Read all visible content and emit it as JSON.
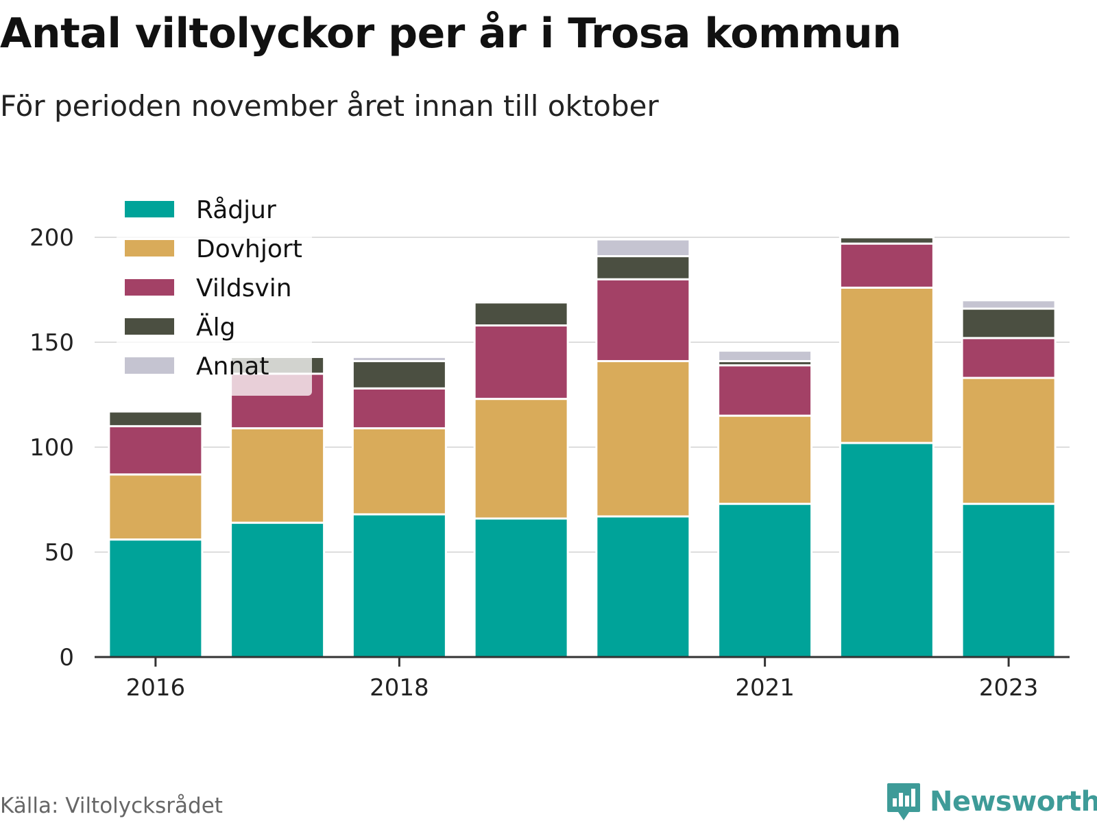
{
  "header": {
    "title": "Antal viltolyckor per år i Trosa kommun",
    "subtitle": "För perioden november året innan till oktober"
  },
  "footer": {
    "source": "Källa: Viltolycksrådet",
    "brand": "Newsworthy"
  },
  "chart_data": {
    "type": "bar",
    "stacked": true,
    "title": "Antal viltolyckor per år i Trosa kommun",
    "subtitle": "För perioden november året innan till oktober",
    "categories": [
      "2016",
      "2017",
      "2018",
      "2019",
      "2020",
      "2021",
      "2022",
      "2023"
    ],
    "x_tick_labels": [
      "2016",
      "",
      "2018",
      "",
      "",
      "2021",
      "",
      "2023"
    ],
    "series": [
      {
        "name": "Rådjur",
        "color": "#00a399",
        "values": [
          56,
          64,
          68,
          66,
          67,
          73,
          102,
          73
        ]
      },
      {
        "name": "Dovhjort",
        "color": "#d9ab5a",
        "values": [
          31,
          45,
          41,
          57,
          74,
          42,
          74,
          60
        ]
      },
      {
        "name": "Vildsvin",
        "color": "#a34166",
        "values": [
          23,
          26,
          19,
          35,
          39,
          24,
          21,
          19
        ]
      },
      {
        "name": "Älg",
        "color": "#4b4f41",
        "values": [
          7,
          8,
          13,
          11,
          11,
          2,
          3,
          14
        ]
      },
      {
        "name": "Annat",
        "color": "#c5c4d1",
        "values": [
          0,
          1,
          2,
          1,
          8,
          5,
          1,
          4
        ]
      }
    ],
    "ylim": [
      0,
      210
    ],
    "yticks": [
      0,
      50,
      100,
      150,
      200
    ],
    "xlabel": "",
    "ylabel": "",
    "grid": true,
    "legend_position": "top-left"
  }
}
